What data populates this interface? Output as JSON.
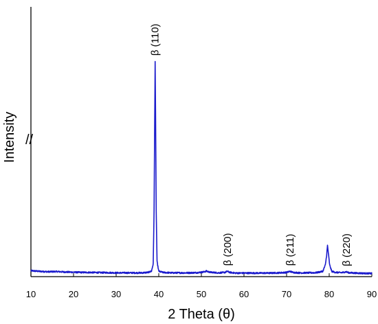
{
  "chart_data": {
    "type": "line",
    "title": "",
    "xlabel": "2 Theta (θ)",
    "ylabel": "Intensity",
    "xlim": [
      10,
      90
    ],
    "ylim": [
      0,
      100
    ],
    "x_ticks": [
      10,
      20,
      30,
      40,
      50,
      60,
      70,
      80,
      90
    ],
    "y_axis_break": "//",
    "grid": false,
    "line_color": "#1a1acc",
    "series": [
      {
        "points": [
          [
            10,
            1.8
          ],
          [
            12,
            1.5
          ],
          [
            14,
            1.3
          ],
          [
            16,
            1.4
          ],
          [
            18,
            1.2
          ],
          [
            20,
            1.1
          ],
          [
            22,
            1.0
          ],
          [
            24,
            1.0
          ],
          [
            26,
            0.9
          ],
          [
            28,
            0.9
          ],
          [
            30,
            0.8
          ],
          [
            32,
            0.8
          ],
          [
            34,
            0.8
          ],
          [
            36,
            0.8
          ],
          [
            37.5,
            1.0
          ],
          [
            38.3,
            1.6
          ],
          [
            38.7,
            5.0
          ],
          [
            38.9,
            30.0
          ],
          [
            39.05,
            72.0
          ],
          [
            39.15,
            99.0
          ],
          [
            39.25,
            75.0
          ],
          [
            39.4,
            30.0
          ],
          [
            39.6,
            6.0
          ],
          [
            40.0,
            1.5
          ],
          [
            41,
            1.0
          ],
          [
            43,
            0.8
          ],
          [
            45,
            0.8
          ],
          [
            47,
            0.8
          ],
          [
            49,
            0.9
          ],
          [
            50.5,
            1.2
          ],
          [
            51.2,
            1.6
          ],
          [
            52,
            1.1
          ],
          [
            54,
            0.8
          ],
          [
            55.5,
            1.0
          ],
          [
            56.1,
            1.5
          ],
          [
            56.7,
            1.0
          ],
          [
            58,
            0.7
          ],
          [
            60,
            0.7
          ],
          [
            62,
            0.7
          ],
          [
            64,
            0.7
          ],
          [
            66,
            0.7
          ],
          [
            68,
            0.8
          ],
          [
            70,
            1.0
          ],
          [
            70.8,
            1.5
          ],
          [
            71.5,
            1.0
          ],
          [
            73,
            0.8
          ],
          [
            75,
            0.8
          ],
          [
            77,
            0.9
          ],
          [
            78.5,
            1.5
          ],
          [
            79.1,
            4.5
          ],
          [
            79.4,
            9.0
          ],
          [
            79.6,
            13.5
          ],
          [
            79.8,
            10.0
          ],
          [
            80.1,
            4.5
          ],
          [
            80.6,
            1.5
          ],
          [
            81.5,
            1.0
          ],
          [
            83,
            0.9
          ],
          [
            84.0,
            1.3
          ],
          [
            84.5,
            0.9
          ],
          [
            86,
            0.7
          ],
          [
            88,
            0.6
          ],
          [
            90,
            0.5
          ]
        ]
      }
    ],
    "annotations": [
      {
        "text": "β (110)",
        "x": 39.15,
        "y": 99.0
      },
      {
        "text": "β (200)",
        "x": 56.1,
        "y": 1.5
      },
      {
        "text": "β (211)",
        "x": 70.8,
        "y": 1.5
      },
      {
        "text": "β (220)",
        "x": 84.0,
        "y": 1.3
      }
    ]
  }
}
